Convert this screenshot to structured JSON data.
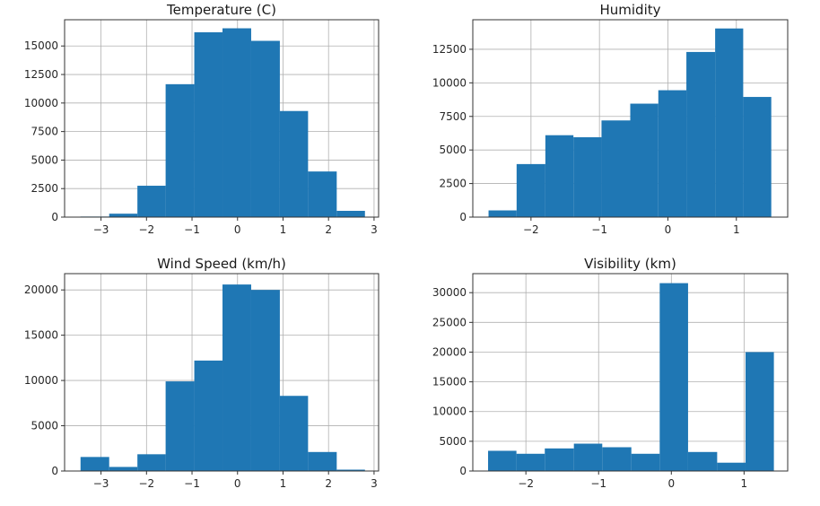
{
  "chart_data": [
    {
      "type": "bar",
      "title": "Temperature (C)",
      "grid": true,
      "bar_color": "#1f77b4",
      "xlim": [
        -3.8,
        3.1
      ],
      "ylim": [
        0,
        17300
      ],
      "xticks": [
        -3,
        -2,
        -1,
        0,
        1,
        2,
        3
      ],
      "yticks": [
        0,
        2500,
        5000,
        7500,
        10000,
        12500,
        15000
      ],
      "bins": [
        {
          "x0": -3.45,
          "x1": -2.82,
          "value": 50
        },
        {
          "x0": -2.82,
          "x1": -2.2,
          "value": 300
        },
        {
          "x0": -2.2,
          "x1": -1.58,
          "value": 2750
        },
        {
          "x0": -1.58,
          "x1": -0.95,
          "value": 11650
        },
        {
          "x0": -0.95,
          "x1": -0.33,
          "value": 16200
        },
        {
          "x0": -0.33,
          "x1": 0.3,
          "value": 16550
        },
        {
          "x0": 0.3,
          "x1": 0.93,
          "value": 15450
        },
        {
          "x0": 0.93,
          "x1": 1.55,
          "value": 9300
        },
        {
          "x0": 1.55,
          "x1": 2.18,
          "value": 4000
        },
        {
          "x0": 2.18,
          "x1": 2.8,
          "value": 550
        }
      ]
    },
    {
      "type": "bar",
      "title": "Humidity",
      "grid": true,
      "bar_color": "#1f77b4",
      "xlim": [
        -2.85,
        1.75
      ],
      "ylim": [
        0,
        14700
      ],
      "xticks": [
        -2,
        -1,
        0,
        1
      ],
      "yticks": [
        0,
        2500,
        5000,
        7500,
        10000,
        12500
      ],
      "bins": [
        {
          "x0": -2.62,
          "x1": -2.21,
          "value": 500
        },
        {
          "x0": -2.21,
          "x1": -1.79,
          "value": 3950
        },
        {
          "x0": -1.79,
          "x1": -1.38,
          "value": 6100
        },
        {
          "x0": -1.38,
          "x1": -0.97,
          "value": 5950
        },
        {
          "x0": -0.97,
          "x1": -0.55,
          "value": 7200
        },
        {
          "x0": -0.55,
          "x1": -0.14,
          "value": 8450
        },
        {
          "x0": -0.14,
          "x1": 0.27,
          "value": 9450
        },
        {
          "x0": 0.27,
          "x1": 0.69,
          "value": 12300
        },
        {
          "x0": 0.69,
          "x1": 1.1,
          "value": 14050
        },
        {
          "x0": 1.1,
          "x1": 1.51,
          "value": 8950
        }
      ]
    },
    {
      "type": "bar",
      "title": "Wind Speed (km/h)",
      "grid": true,
      "bar_color": "#1f77b4",
      "xlim": [
        -3.8,
        3.1
      ],
      "ylim": [
        0,
        21800
      ],
      "xticks": [
        -3,
        -2,
        -1,
        0,
        1,
        2,
        3
      ],
      "yticks": [
        0,
        5000,
        10000,
        15000,
        20000
      ],
      "bins": [
        {
          "x0": -3.45,
          "x1": -2.82,
          "value": 1550
        },
        {
          "x0": -2.82,
          "x1": -2.2,
          "value": 450
        },
        {
          "x0": -2.2,
          "x1": -1.58,
          "value": 1850
        },
        {
          "x0": -1.58,
          "x1": -0.95,
          "value": 9900
        },
        {
          "x0": -0.95,
          "x1": -0.33,
          "value": 12200
        },
        {
          "x0": -0.33,
          "x1": 0.3,
          "value": 20600
        },
        {
          "x0": 0.3,
          "x1": 0.93,
          "value": 20000
        },
        {
          "x0": 0.93,
          "x1": 1.55,
          "value": 8300
        },
        {
          "x0": 1.55,
          "x1": 2.18,
          "value": 2100
        },
        {
          "x0": 2.18,
          "x1": 2.8,
          "value": 150
        }
      ]
    },
    {
      "type": "bar",
      "title": "Visibility (km)",
      "grid": true,
      "bar_color": "#1f77b4",
      "xlim": [
        -2.73,
        1.6
      ],
      "ylim": [
        0,
        33200
      ],
      "xticks": [
        -2,
        -1,
        0,
        1
      ],
      "yticks": [
        0,
        5000,
        10000,
        15000,
        20000,
        25000,
        30000
      ],
      "bins": [
        {
          "x0": -2.52,
          "x1": -2.13,
          "value": 3400
        },
        {
          "x0": -2.13,
          "x1": -1.74,
          "value": 2900
        },
        {
          "x0": -1.74,
          "x1": -1.34,
          "value": 3800
        },
        {
          "x0": -1.34,
          "x1": -0.95,
          "value": 4600
        },
        {
          "x0": -0.95,
          "x1": -0.55,
          "value": 4000
        },
        {
          "x0": -0.55,
          "x1": -0.16,
          "value": 2900
        },
        {
          "x0": -0.16,
          "x1": 0.23,
          "value": 31600
        },
        {
          "x0": 0.23,
          "x1": 0.63,
          "value": 3200
        },
        {
          "x0": 0.63,
          "x1": 1.02,
          "value": 1400
        },
        {
          "x0": 1.02,
          "x1": 1.41,
          "value": 20000
        }
      ]
    }
  ]
}
